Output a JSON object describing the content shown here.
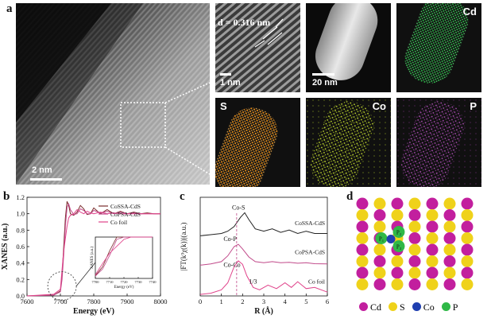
{
  "figure": {
    "panel_a": {
      "letter": "a",
      "scale_main": "2 nm",
      "scale_zoom": "1 nm",
      "d_spacing": "d = 0.316 nm",
      "scale_haadf": "20 nm",
      "maps": [
        {
          "element": "Cd",
          "color": "#2dbf4a"
        },
        {
          "element": "S",
          "color": "#e08a1a"
        },
        {
          "element": "Co",
          "color": "#c8e032"
        },
        {
          "element": "P",
          "color": "#b04fb8"
        }
      ]
    },
    "panel_b": {
      "letter": "b"
    },
    "panel_c": {
      "letter": "c"
    },
    "panel_d": {
      "letter": "d",
      "legend": [
        {
          "label": "Cd",
          "color": "#c21f9e"
        },
        {
          "label": "S",
          "color": "#efd21a"
        },
        {
          "label": "Co",
          "color": "#1f3fb0"
        },
        {
          "label": "P",
          "color": "#2fb847"
        }
      ],
      "sites": [
        "P₁",
        "P₂",
        "P₃"
      ]
    }
  },
  "chart_data": [
    {
      "type": "line",
      "panel": "b",
      "xlabel": "Energy (eV)",
      "ylabel": "XANES (a.u.)",
      "xlim": [
        7600,
        8000
      ],
      "ylim": [
        0,
        1.2
      ],
      "xticks": [
        7600,
        7700,
        7800,
        7900,
        8000
      ],
      "yticks": [
        0.0,
        0.2,
        0.4,
        0.6,
        0.8,
        1.0,
        1.2
      ],
      "legend": [
        "CoSSA-CdS",
        "CoPSA-CdS",
        "Co foil"
      ],
      "series": [
        {
          "name": "CoSSA-CdS",
          "color": "#7a2b2b",
          "x": [
            7600,
            7680,
            7700,
            7705,
            7710,
            7715,
            7720,
            7725,
            7730,
            7740,
            7750,
            7760,
            7770,
            7780,
            7790,
            7800,
            7820,
            7840,
            7860,
            7880,
            7900,
            7920,
            7940,
            7960,
            7980,
            8000
          ],
          "y": [
            0.0,
            0.01,
            0.06,
            0.25,
            0.6,
            0.95,
            1.15,
            1.1,
            1.0,
            0.98,
            1.02,
            1.1,
            1.06,
            0.99,
            1.0,
            1.07,
            1.0,
            1.05,
            1.0,
            1.03,
            1.0,
            1.02,
            1.0,
            1.01,
            1.0,
            1.0
          ]
        },
        {
          "name": "CoPSA-CdS",
          "color": "#c14a8a",
          "x": [
            7600,
            7680,
            7700,
            7705,
            7710,
            7715,
            7720,
            7725,
            7730,
            7740,
            7750,
            7760,
            7770,
            7780,
            7790,
            7800,
            7820,
            7840,
            7860,
            7880,
            7900,
            7920,
            7940,
            7960,
            7980,
            8000
          ],
          "y": [
            0.0,
            0.01,
            0.05,
            0.2,
            0.5,
            0.85,
            1.08,
            1.12,
            1.05,
            0.99,
            1.0,
            1.06,
            1.04,
            1.0,
            1.0,
            1.04,
            1.01,
            1.03,
            1.0,
            1.02,
            1.0,
            1.01,
            1.0,
            1.0,
            1.0,
            1.0
          ]
        },
        {
          "name": "Co foil",
          "color": "#e0428a",
          "x": [
            7600,
            7680,
            7700,
            7705,
            7710,
            7715,
            7720,
            7725,
            7730,
            7740,
            7750,
            7760,
            7770,
            7780,
            7790,
            7800,
            7820,
            7840,
            7860,
            7880,
            7900,
            7920,
            7940,
            7960,
            7980,
            8000
          ],
          "y": [
            0.0,
            0.02,
            0.08,
            0.32,
            0.55,
            0.7,
            0.85,
            0.95,
            0.98,
            1.0,
            1.05,
            1.02,
            1.0,
            1.03,
            1.01,
            1.0,
            1.02,
            1.0,
            1.01,
            1.0,
            1.0,
            1.0,
            1.0,
            1.0,
            1.0,
            1.0
          ]
        }
      ],
      "inset": {
        "xlabel": "Energy (eV)",
        "ylabel": "XANES (a.u.)",
        "xticks": [
          7700,
          7710,
          7720,
          7730,
          7740
        ]
      }
    },
    {
      "type": "line",
      "panel": "c",
      "xlabel": "R (Å)",
      "ylabel": "|FT(k³χ(k))|(a.u.)",
      "xlim": [
        0,
        6
      ],
      "xticks": [
        0,
        1,
        2,
        3,
        4,
        5,
        6
      ],
      "series": [
        {
          "name": "CoSSA-CdS",
          "color": "#222222",
          "offset": 2.0,
          "x": [
            0,
            0.5,
            1.0,
            1.3,
            1.6,
            1.9,
            2.1,
            2.3,
            2.6,
            3.0,
            3.4,
            3.8,
            4.2,
            4.6,
            5.0,
            5.4,
            6.0
          ],
          "y": [
            0.0,
            0.05,
            0.1,
            0.2,
            0.4,
            0.8,
            1.0,
            0.7,
            0.3,
            0.2,
            0.3,
            0.15,
            0.25,
            0.1,
            0.2,
            0.1,
            0.1
          ]
        },
        {
          "name": "CoPSA-CdS",
          "color": "#c14a8a",
          "offset": 1.0,
          "x": [
            0,
            0.5,
            1.0,
            1.3,
            1.6,
            1.8,
            2.0,
            2.3,
            2.6,
            3.0,
            3.4,
            3.8,
            4.2,
            4.6,
            5.0,
            5.4,
            6.0
          ],
          "y": [
            0.0,
            0.05,
            0.15,
            0.4,
            0.8,
            0.9,
            0.7,
            0.35,
            0.15,
            0.1,
            0.15,
            0.1,
            0.12,
            0.08,
            0.1,
            0.06,
            0.05
          ]
        },
        {
          "name": "Co foil",
          "color": "#e0428a",
          "offset": 0.0,
          "x": [
            0,
            0.5,
            1.0,
            1.3,
            1.6,
            1.8,
            2.0,
            2.2,
            2.5,
            2.8,
            3.2,
            3.6,
            4.0,
            4.3,
            4.6,
            5.0,
            5.4,
            6.0
          ],
          "y": [
            0.0,
            0.05,
            0.2,
            0.5,
            1.2,
            1.45,
            1.3,
            0.8,
            0.3,
            0.2,
            0.4,
            0.25,
            0.5,
            0.3,
            0.55,
            0.25,
            0.3,
            0.1
          ]
        }
      ],
      "annotations": [
        "Co-S",
        "Co-P",
        "Co-Co",
        "1/3"
      ]
    }
  ]
}
